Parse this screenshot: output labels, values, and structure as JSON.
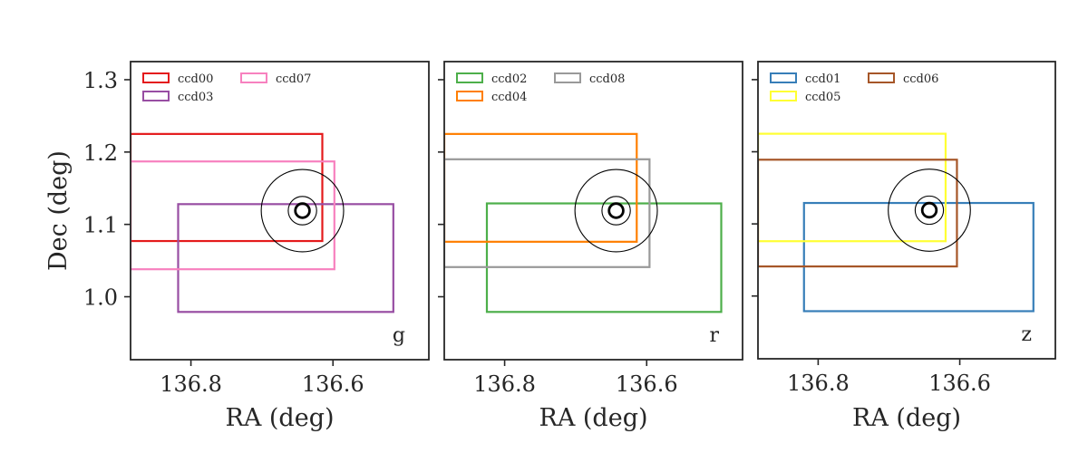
{
  "chart_data": [
    {
      "type": "scatter",
      "band": "g",
      "xlabel": "RA (deg)",
      "ylabel": "Dec (deg)",
      "xlim": [
        136.885,
        136.465
      ],
      "ylim": [
        0.913,
        1.325
      ],
      "xticks": [
        136.8,
        136.6
      ],
      "xtick_labels": [
        "136.8",
        "136.6"
      ],
      "yticks": [
        1.0,
        1.1,
        1.2,
        1.3
      ],
      "ytick_labels": [
        "1.0",
        "1.1",
        "1.2",
        "1.3"
      ],
      "legend": {
        "position": "top-left",
        "columns": 2
      },
      "target": {
        "ra": 136.643,
        "dec": 1.119,
        "circle_radii": [
          0.058,
          0.02,
          0.01
        ]
      },
      "ccds": [
        {
          "name": "ccd00",
          "ra_min": 136.615,
          "ra_max": 136.885,
          "dec_min": 1.077,
          "dec_max": 1.225,
          "color": "#e41a1c"
        },
        {
          "name": "ccd03",
          "ra_min": 136.515,
          "ra_max": 136.818,
          "dec_min": 0.979,
          "dec_max": 1.128,
          "color": "#984ea3"
        },
        {
          "name": "ccd07",
          "ra_min": 136.598,
          "ra_max": 136.885,
          "dec_min": 1.038,
          "dec_max": 1.187,
          "color": "#f781bf"
        }
      ]
    },
    {
      "type": "scatter",
      "band": "r",
      "xlabel": "RA (deg)",
      "ylabel": "",
      "xlim": [
        136.885,
        136.465
      ],
      "ylim": [
        0.913,
        1.325
      ],
      "xticks": [
        136.8,
        136.6
      ],
      "xtick_labels": [
        "136.8",
        "136.6"
      ],
      "yticks": [
        1.0,
        1.1,
        1.2,
        1.3
      ],
      "ytick_labels": [],
      "legend": {
        "position": "top-left",
        "columns": 2
      },
      "target": {
        "ra": 136.643,
        "dec": 1.119,
        "circle_radii": [
          0.058,
          0.02,
          0.01
        ]
      },
      "ccds": [
        {
          "name": "ccd02",
          "ra_min": 136.495,
          "ra_max": 136.825,
          "dec_min": 0.979,
          "dec_max": 1.129,
          "color": "#4daf4a"
        },
        {
          "name": "ccd04",
          "ra_min": 136.614,
          "ra_max": 136.885,
          "dec_min": 1.076,
          "dec_max": 1.225,
          "color": "#ff7f00"
        },
        {
          "name": "ccd08",
          "ra_min": 136.596,
          "ra_max": 136.885,
          "dec_min": 1.041,
          "dec_max": 1.19,
          "color": "#999999"
        }
      ]
    },
    {
      "type": "scatter",
      "band": "z",
      "xlabel": "RA (deg)",
      "ylabel": "",
      "xlim": [
        136.885,
        136.465
      ],
      "ylim": [
        0.913,
        1.325
      ],
      "xticks": [
        136.8,
        136.6
      ],
      "xtick_labels": [
        "136.8",
        "136.6"
      ],
      "yticks": [
        1.0,
        1.1,
        1.2,
        1.3
      ],
      "ytick_labels": [],
      "legend": {
        "position": "top-left",
        "columns": 2
      },
      "target": {
        "ra": 136.643,
        "dec": 1.119,
        "circle_radii": [
          0.058,
          0.02,
          0.01
        ]
      },
      "ccds": [
        {
          "name": "ccd01",
          "ra_min": 136.496,
          "ra_max": 136.82,
          "dec_min": 0.979,
          "dec_max": 1.129,
          "color": "#377eb8"
        },
        {
          "name": "ccd05",
          "ra_min": 136.62,
          "ra_max": 136.885,
          "dec_min": 1.076,
          "dec_max": 1.225,
          "color": "#ffff33"
        },
        {
          "name": "ccd06",
          "ra_min": 136.604,
          "ra_max": 136.885,
          "dec_min": 1.041,
          "dec_max": 1.189,
          "color": "#a65628"
        }
      ]
    }
  ]
}
